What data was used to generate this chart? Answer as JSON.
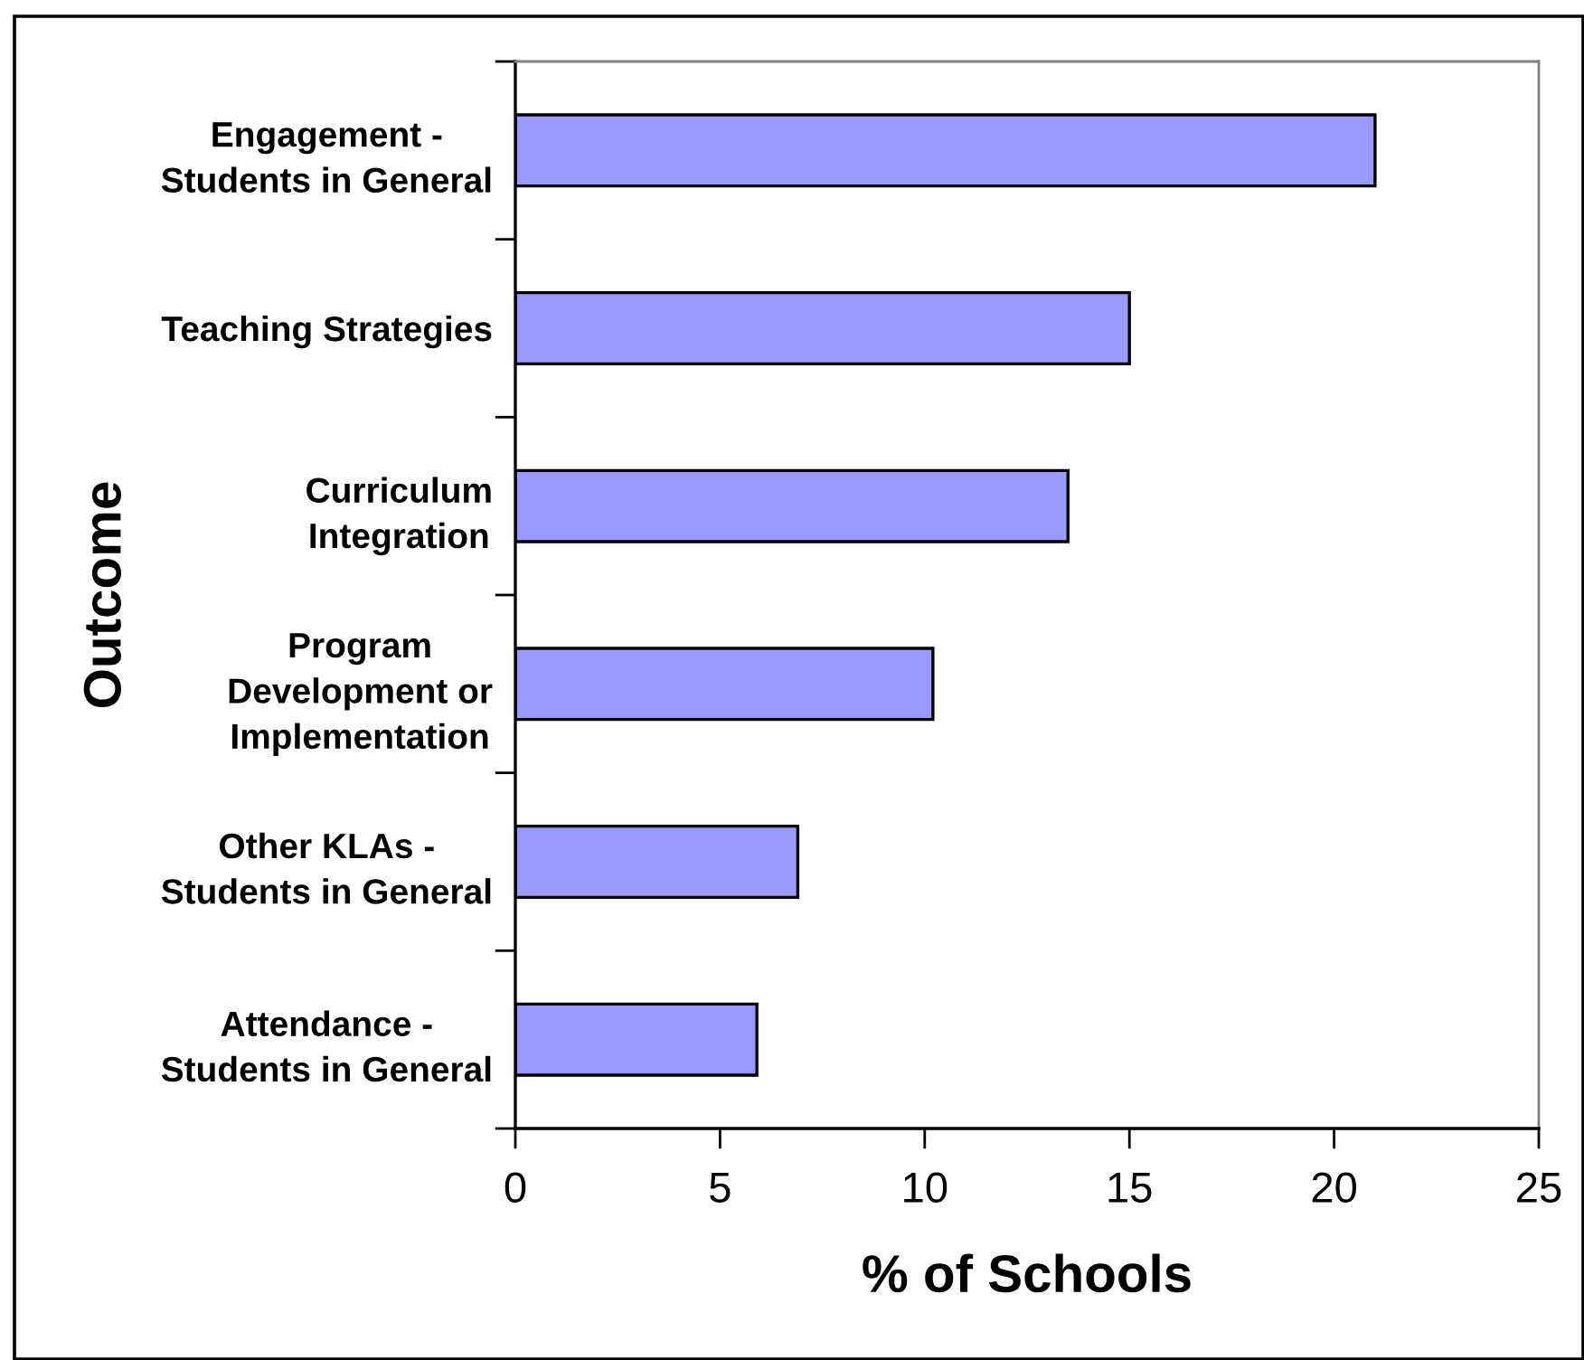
{
  "chart_data": {
    "type": "bar",
    "orientation": "horizontal",
    "categories": [
      "Engagement -\nStudents in General",
      "Teaching Strategies",
      "Curriculum\nIntegration",
      "Program\nDevelopment or\nImplementation",
      "Other KLAs -\nStudents in General",
      "Attendance -\nStudents in General"
    ],
    "values": [
      21,
      15,
      13.5,
      10.2,
      6.9,
      5.9
    ],
    "color": "#9999ff",
    "xlim": [
      0,
      25
    ],
    "xticks": [
      0,
      5,
      10,
      15,
      20,
      25
    ],
    "xlabel": "% of Schools",
    "ylabel": "Outcome",
    "grid": false
  }
}
